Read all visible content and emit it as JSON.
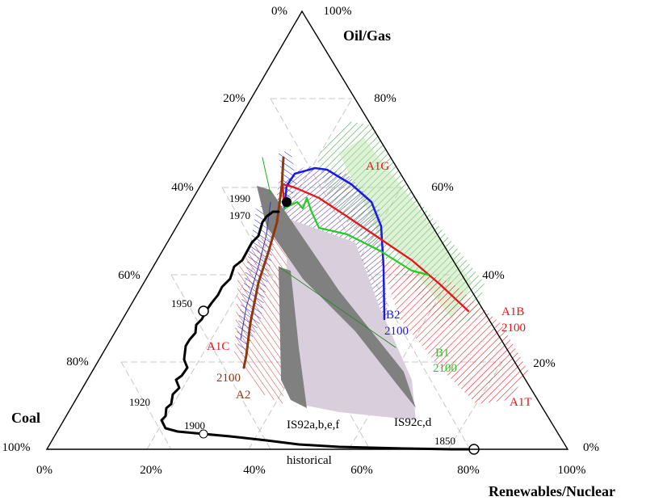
{
  "axes": {
    "oil_gas": "Oil/Gas",
    "coal": "Coal",
    "renewables": "Renewables/Nuclear"
  },
  "ticks": {
    "left_edge": [
      "0%",
      "20%",
      "40%",
      "60%",
      "80%",
      "100%"
    ],
    "right_edge": [
      "100%",
      "80%",
      "60%",
      "40%",
      "20%",
      "0%"
    ],
    "bottom_edge": [
      "0%",
      "20%",
      "40%",
      "60%",
      "80%",
      "100%"
    ]
  },
  "scenarios": {
    "a1g": "A1G",
    "a1b": "A1B",
    "a1b_year": "2100",
    "a1t": "A1T",
    "a1c": "A1C",
    "a2": "A2",
    "a2_year": "2100",
    "b1": "B1",
    "b1_year": "2100",
    "b2": "B2",
    "b2_year": "2100",
    "is92abef": "IS92a,b,e,f",
    "is92cd": "IS92c,d",
    "historical": "historical"
  },
  "years": {
    "y1990": "1990",
    "y1970": "1970",
    "y1950": "1950",
    "y1920": "1920",
    "y1900": "1900",
    "y1850": "1850"
  },
  "colors": {
    "a1b": "#e8141b",
    "b1": "#22cc22",
    "b2": "#1a1ae6",
    "a2": "#8b3a0f",
    "historical": "#000000",
    "is92": "#808080",
    "is92_band": "#d9cfdc",
    "a1g_hatch": "#3aa83a"
  }
}
